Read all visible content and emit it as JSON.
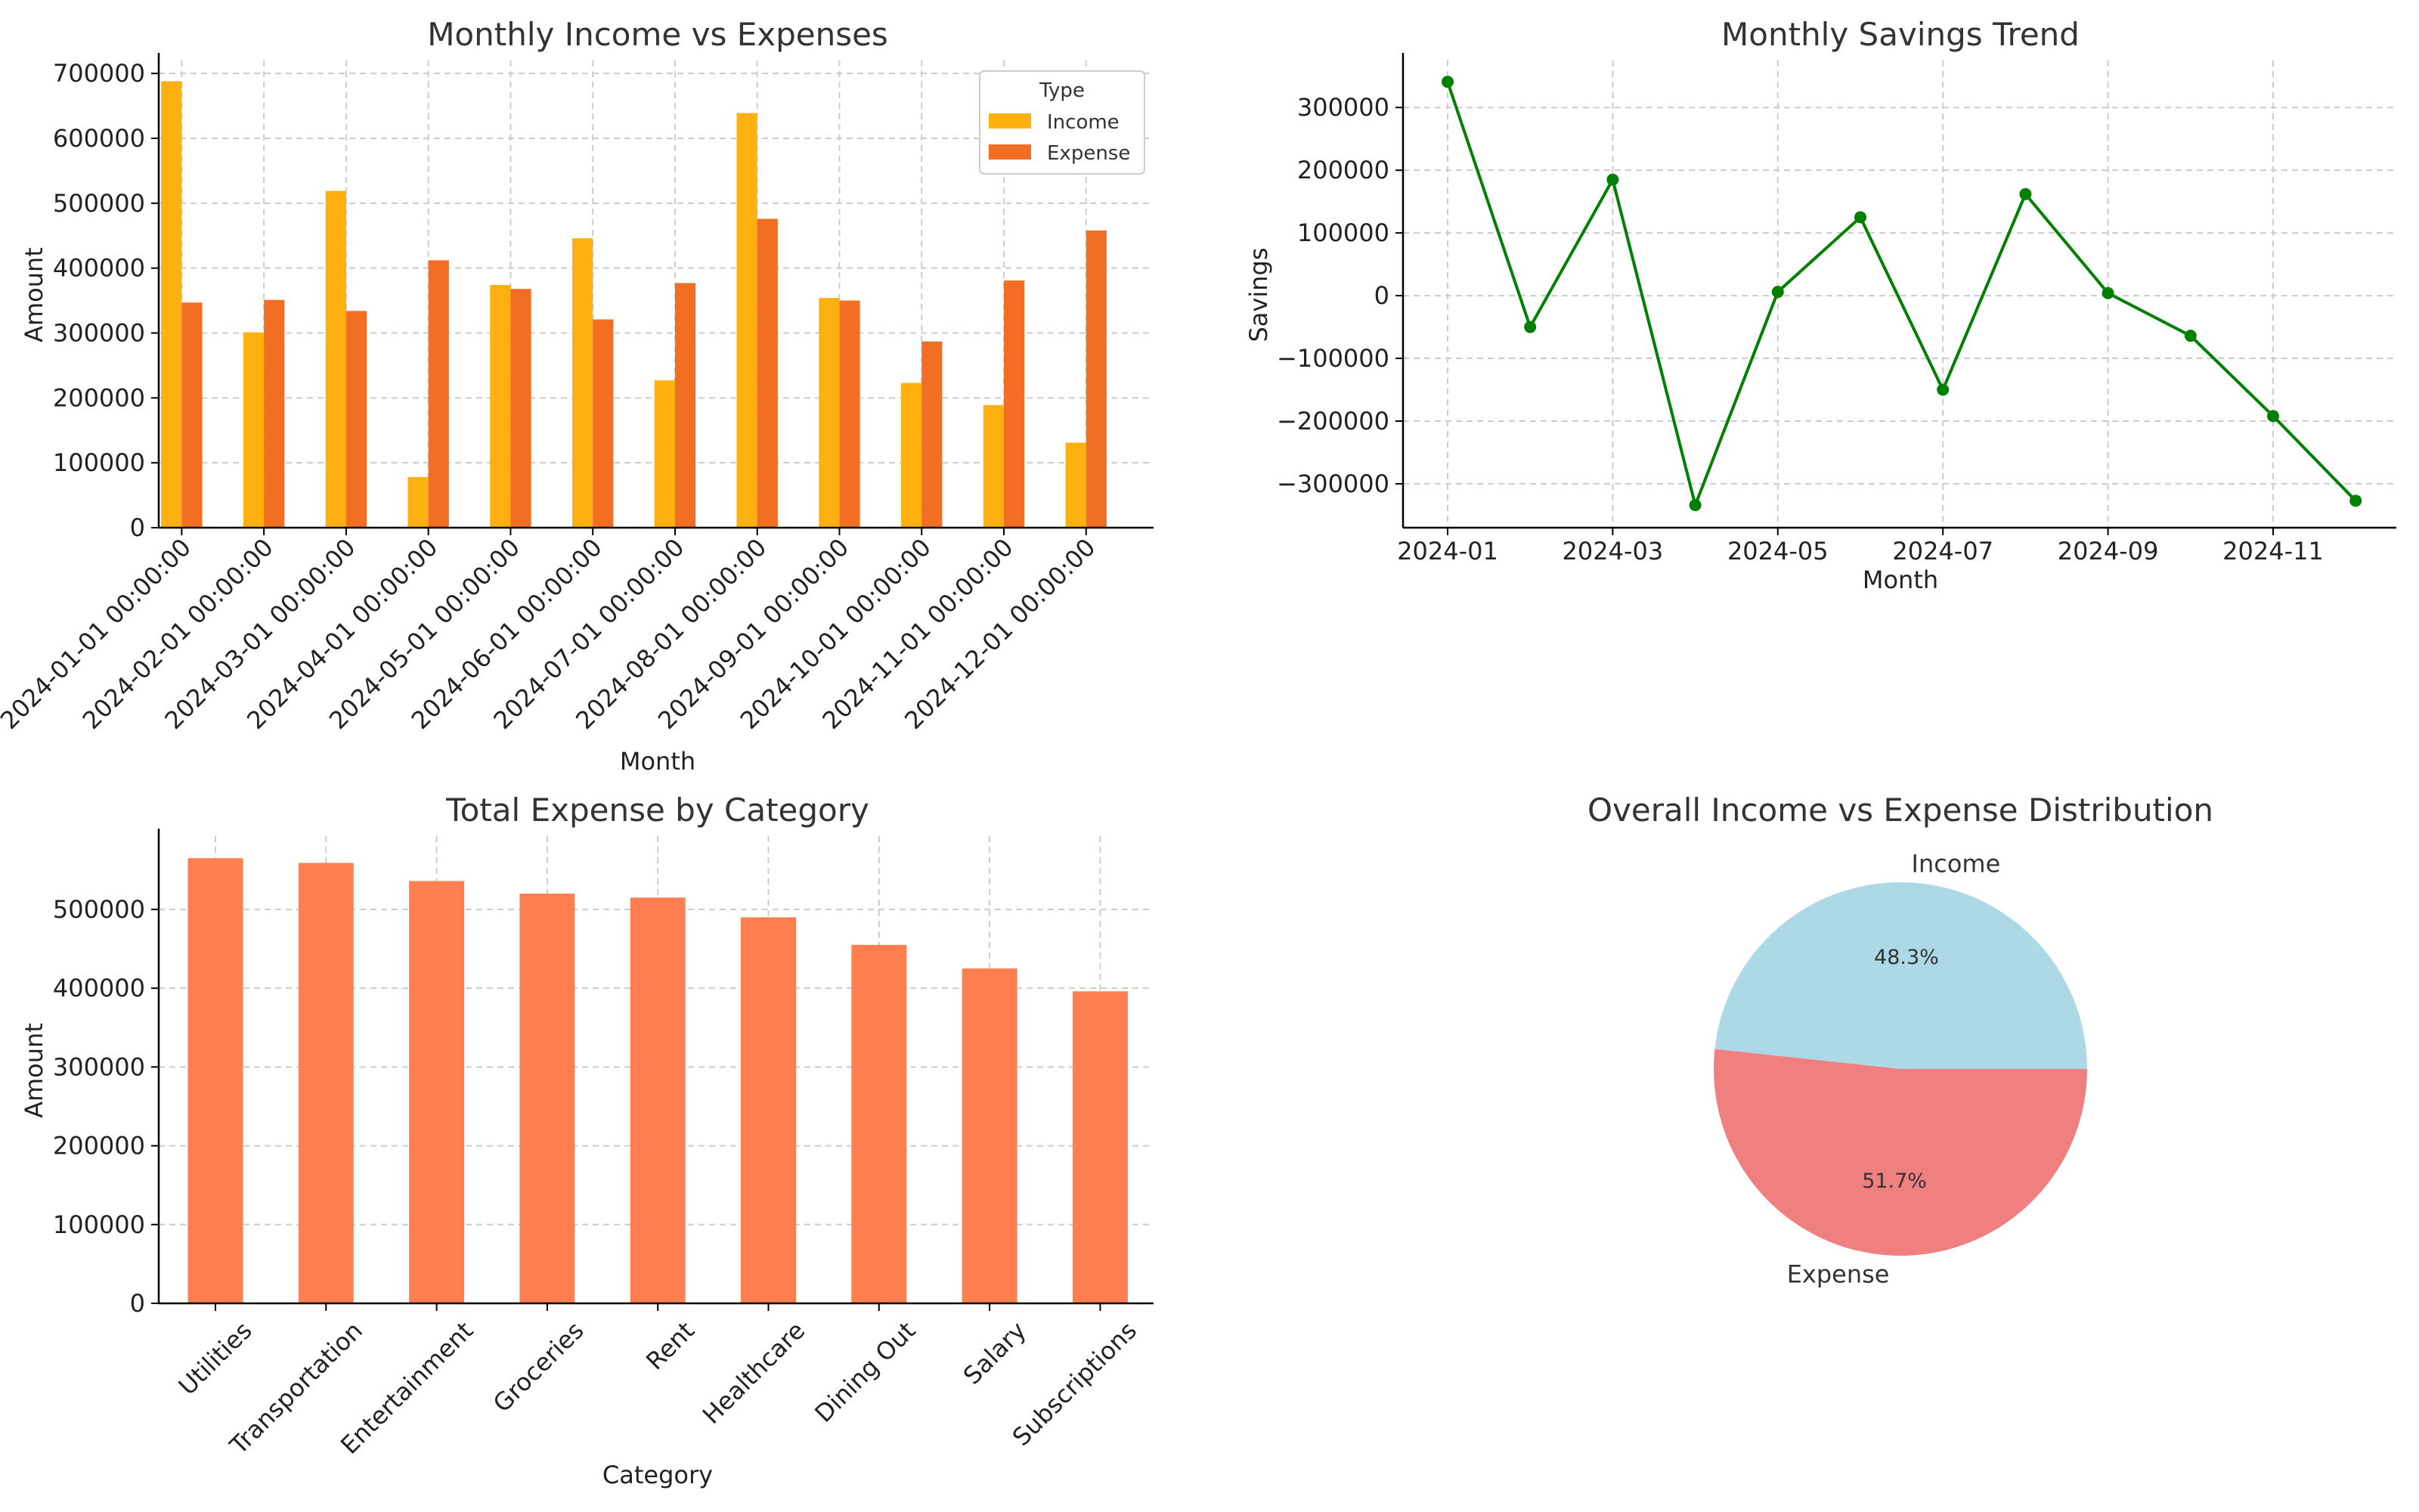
{
  "chart_data": [
    {
      "type": "bar",
      "title": "Monthly Income vs Expenses",
      "xlabel": "Month",
      "ylabel": "Amount",
      "ylim": [
        0,
        720000
      ],
      "yticks": [
        "0",
        "100000",
        "200000",
        "300000",
        "400000",
        "500000",
        "600000",
        "700000"
      ],
      "ytick_values": [
        0,
        100000,
        200000,
        300000,
        400000,
        500000,
        600000,
        700000
      ],
      "categories": [
        "2024-01-01 00:00:00",
        "2024-02-01 00:00:00",
        "2024-03-01 00:00:00",
        "2024-04-01 00:00:00",
        "2024-05-01 00:00:00",
        "2024-06-01 00:00:00",
        "2024-07-01 00:00:00",
        "2024-08-01 00:00:00",
        "2024-09-01 00:00:00",
        "2024-10-01 00:00:00",
        "2024-11-01 00:00:00",
        "2024-12-01 00:00:00"
      ],
      "legend_title": "Type",
      "legend_position": "top-right",
      "grid": true,
      "series": [
        {
          "name": "Income",
          "color": "#FFB011",
          "values": [
            688000,
            301000,
            519000,
            78000,
            374000,
            446000,
            227000,
            639000,
            354000,
            223000,
            189000,
            131000
          ]
        },
        {
          "name": "Expense",
          "color": "#F26E23",
          "values": [
            347000,
            351000,
            334000,
            412000,
            368000,
            321000,
            377000,
            476000,
            350000,
            287000,
            381000,
            458000
          ]
        }
      ]
    },
    {
      "type": "line",
      "title": "Monthly Savings Trend",
      "xlabel": "Month",
      "ylabel": "Savings",
      "color": "#008000",
      "x": [
        "2024-01",
        "2024-02",
        "2024-03",
        "2024-04",
        "2024-05",
        "2024-06",
        "2024-07",
        "2024-08",
        "2024-09",
        "2024-10",
        "2024-11",
        "2024-12"
      ],
      "values": [
        341000,
        -50000,
        185000,
        -334000,
        6000,
        125000,
        -150000,
        162000,
        4000,
        -64000,
        -192000,
        -327000
      ],
      "xticks": [
        "2024-01",
        "2024-03",
        "2024-05",
        "2024-07",
        "2024-09",
        "2024-11"
      ],
      "yticks": [
        "−300000",
        "−200000",
        "−100000",
        "0",
        "100000",
        "200000",
        "300000"
      ],
      "ytick_values": [
        -300000,
        -200000,
        -100000,
        0,
        100000,
        200000,
        300000
      ],
      "ylim": [
        -370000,
        375000
      ],
      "grid": true
    },
    {
      "type": "bar",
      "title": "Total Expense by Category",
      "xlabel": "Category",
      "ylabel": "Amount",
      "color": "#FF7F50",
      "categories": [
        "Utilities",
        "Transportation",
        "Entertainment",
        "Groceries",
        "Rent",
        "Healthcare",
        "Dining Out",
        "Salary",
        "Subscriptions"
      ],
      "values": [
        565000,
        559000,
        536000,
        520000,
        515000,
        490000,
        455000,
        425000,
        396000
      ],
      "ylim": [
        0,
        593000
      ],
      "yticks": [
        "0",
        "100000",
        "200000",
        "300000",
        "400000",
        "500000"
      ],
      "ytick_values": [
        0,
        100000,
        200000,
        300000,
        400000,
        500000
      ],
      "grid": true
    },
    {
      "type": "pie",
      "title": "Overall Income vs Expense Distribution",
      "labels": [
        "Income",
        "Expense"
      ],
      "values": [
        48.3,
        51.7
      ],
      "percent_labels": [
        "48.3%",
        "51.7%"
      ],
      "colors": [
        "#ADD8E6",
        "#F08080"
      ]
    }
  ]
}
